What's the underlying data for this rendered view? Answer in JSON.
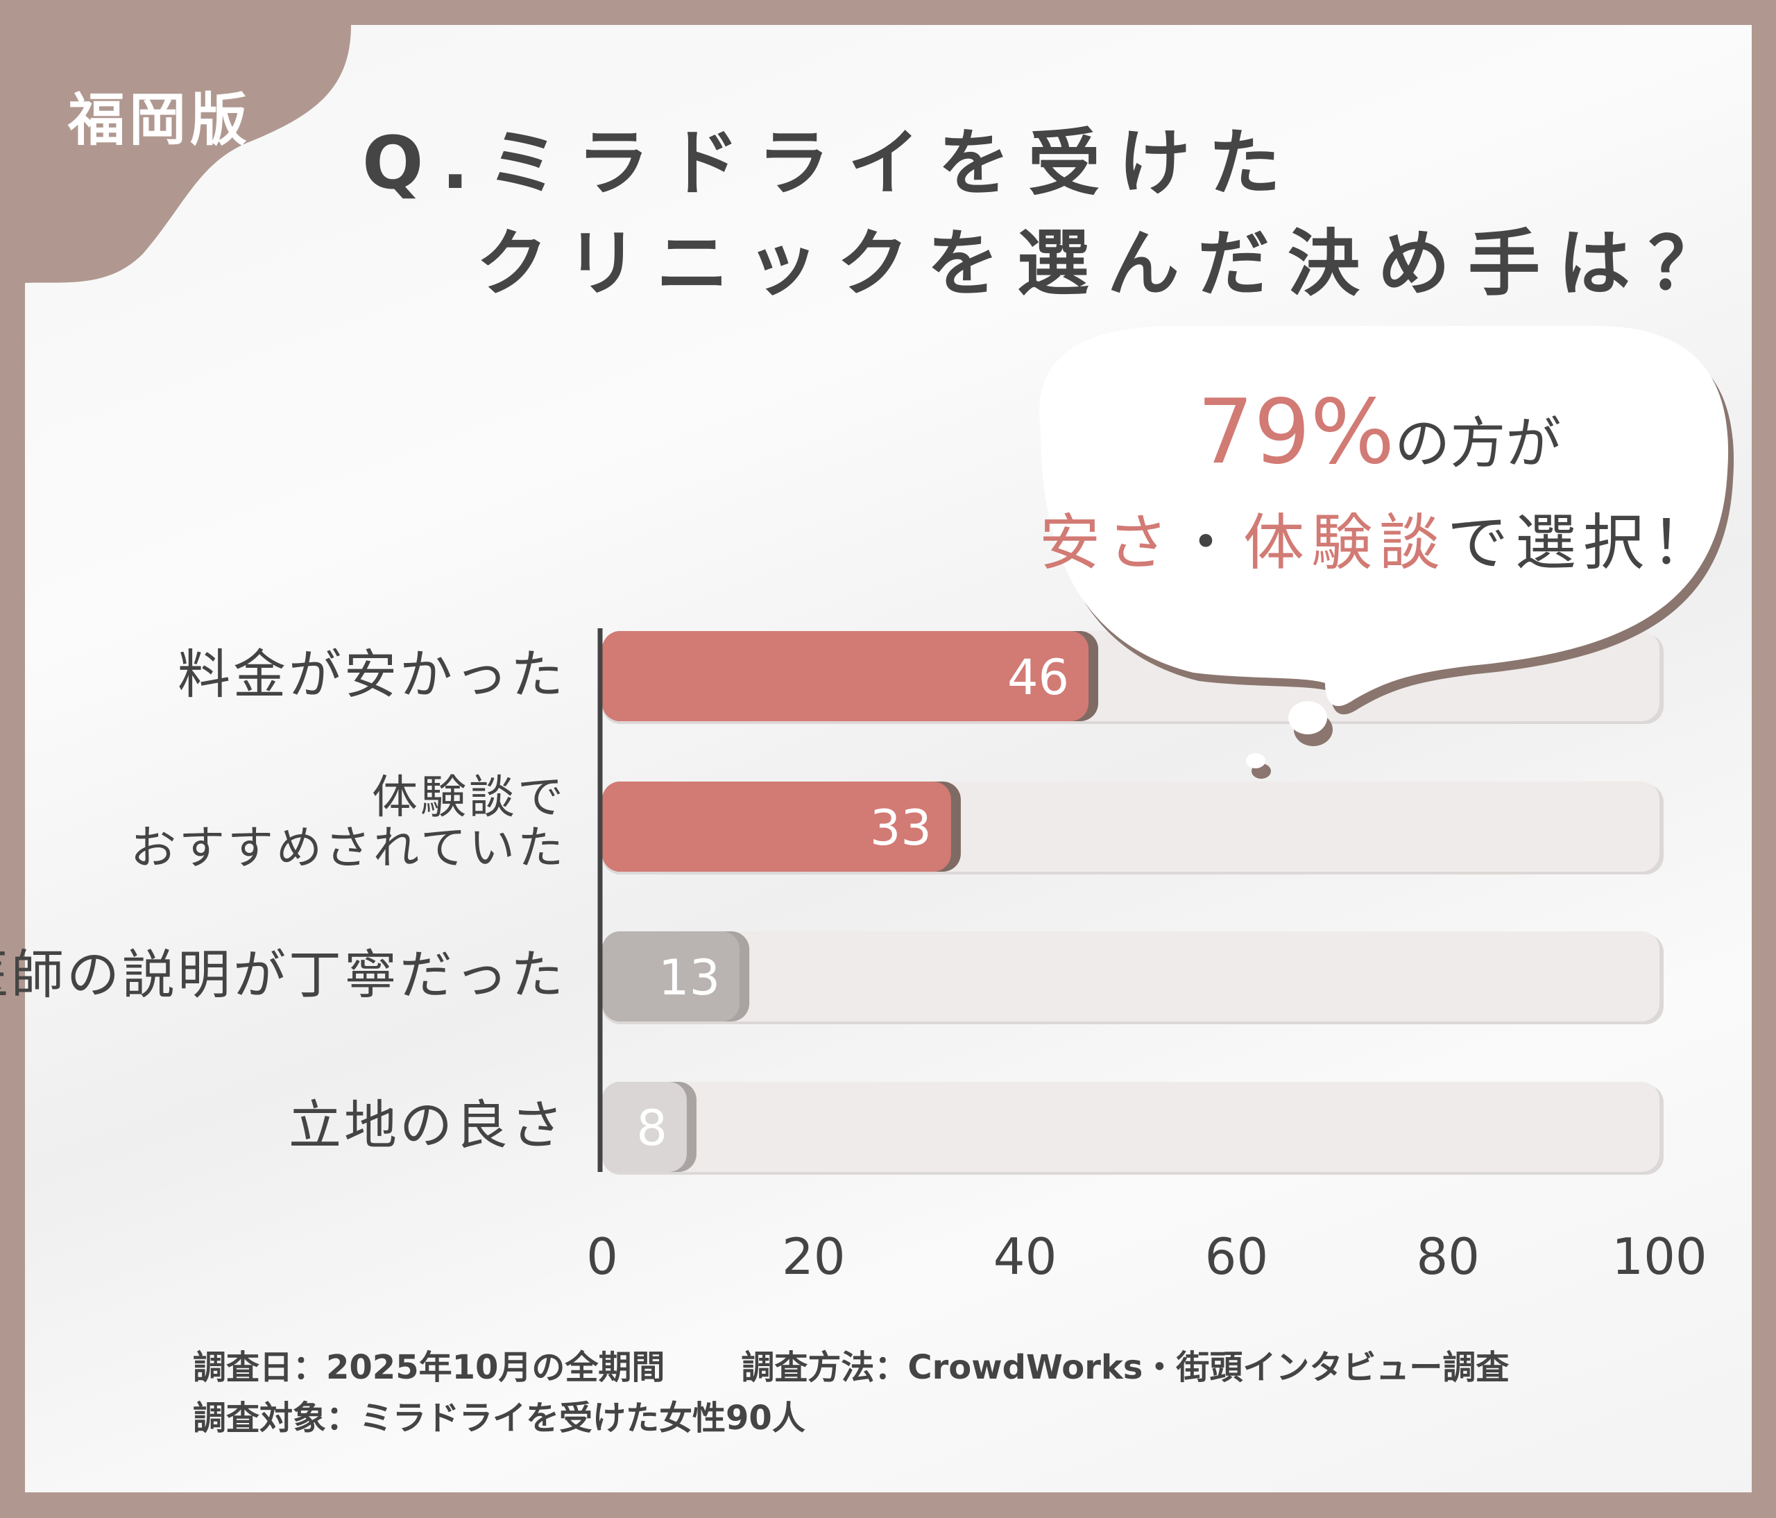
{
  "badge": "福岡版",
  "title": {
    "line1": "Q.ミラドライを受けた",
    "line2": "クリニックを選んだ決め手は？"
  },
  "callout": {
    "percent": "79%",
    "suffix": "の方が",
    "highlight1": "安さ",
    "sep": "・",
    "highlight2": "体験談",
    "tail": "で選択！"
  },
  "chart_data": {
    "type": "bar",
    "orientation": "horizontal",
    "categories": [
      "料金が安かった",
      "体験談で\nおすすめされていた",
      "医師の説明が丁寧だった",
      "立地の良さ"
    ],
    "values": [
      46,
      33,
      13,
      8
    ],
    "xlim": [
      0,
      100
    ],
    "xticks": [
      "0",
      "20",
      "40",
      "60",
      "80",
      "100"
    ],
    "bar_colors": [
      "#d27a74",
      "#d27a74",
      "#b9b4b2",
      "#d9d6d5"
    ],
    "track_color": "#efebea",
    "grid": false
  },
  "footer": {
    "date": "調査日：2025年10月の全期間",
    "method": "調査方法：CrowdWorks・街頭インタビュー調査",
    "target": "調査対象：ミラドライを受けた女性90人"
  }
}
